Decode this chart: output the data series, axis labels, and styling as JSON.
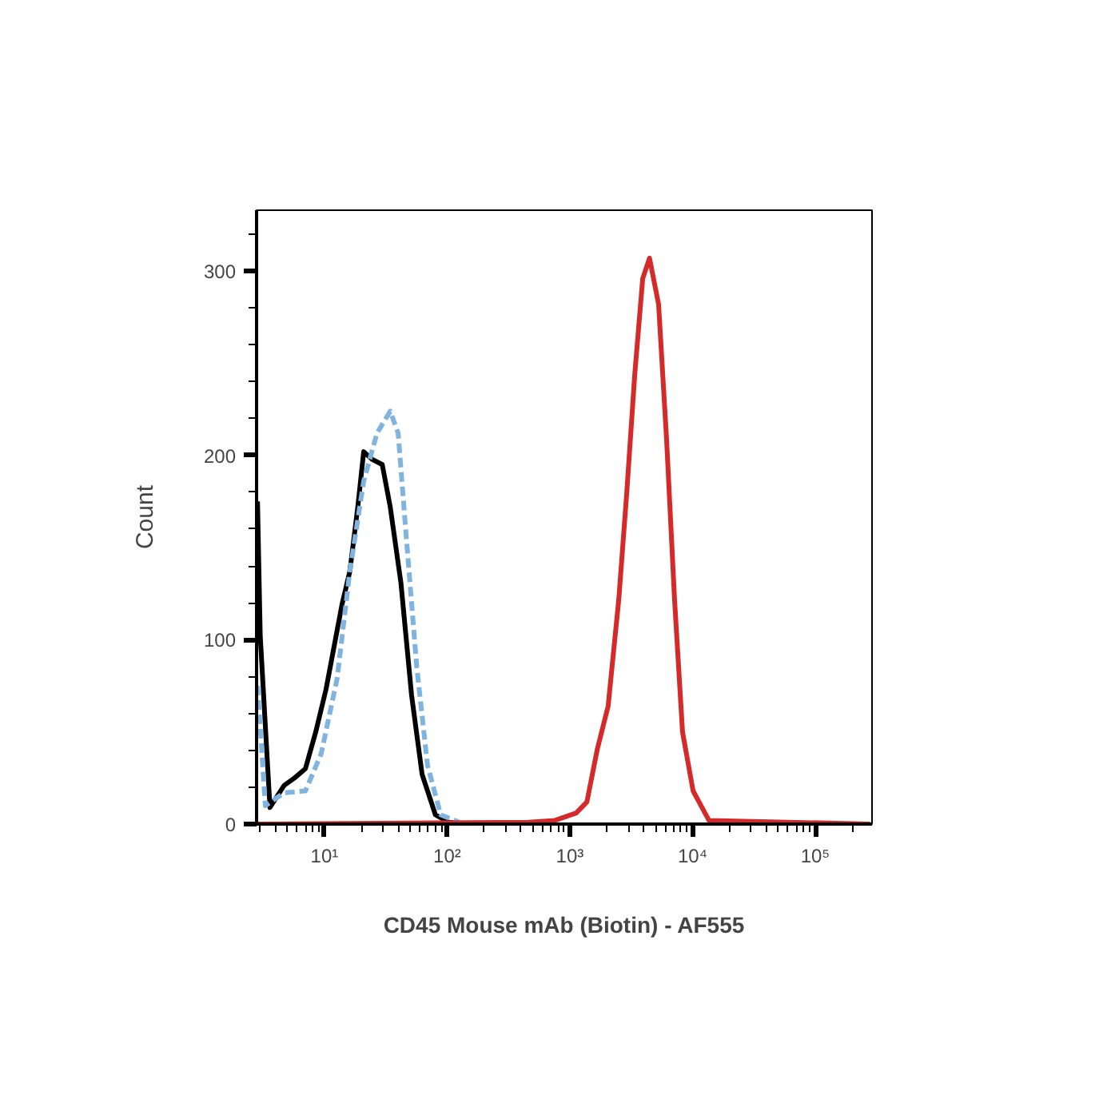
{
  "chart_data": {
    "type": "line",
    "xlabel": "CD45 Mouse mAb (Biotin) - AF555",
    "ylabel": "Count",
    "log": "x",
    "xlim": [
      2.8,
      290000
    ],
    "ylim": [
      0,
      333
    ],
    "xticks": [
      {
        "value": 10,
        "label": "10¹"
      },
      {
        "value": 100,
        "label": "10²"
      },
      {
        "value": 1000,
        "label": "10³"
      },
      {
        "value": 10000,
        "label": "10⁴"
      },
      {
        "value": 100000,
        "label": "10⁵"
      }
    ],
    "yticks": [
      0,
      100,
      200,
      300
    ],
    "marker": "none",
    "series": [
      {
        "color": "#000000",
        "line_style": "solid",
        "x": [
          2.85,
          3.0,
          3.6,
          4.7,
          5.7,
          7.0,
          8.5,
          10.3,
          13.9,
          16.1,
          18.7,
          20.9,
          24.3,
          29.6,
          34.4,
          42,
          51.3,
          62.5,
          80.3,
          103,
          139
        ],
        "values": [
          175,
          102,
          9,
          21,
          25,
          30,
          50,
          73,
          119,
          137,
          172,
          202,
          198,
          195,
          172,
          131,
          70,
          27,
          5,
          1,
          0
        ]
      },
      {
        "color": "#7fb3e0",
        "line_style": "dashed",
        "x": [
          2.85,
          3.3,
          4.7,
          7.0,
          9.4,
          12.7,
          16.1,
          20.9,
          26.8,
          34.4,
          39.9,
          46.3,
          56.6,
          69.2,
          88.7,
          126
        ],
        "values": [
          75,
          10,
          17,
          18,
          38,
          79,
          137,
          186,
          212,
          224,
          212,
          157,
          85,
          32,
          5,
          1
        ]
      },
      {
        "color": "#d42a2a",
        "line_style": "solid",
        "x": [
          2.85,
          459,
          757,
          1127,
          1377,
          1679,
          2051,
          2506,
          2911,
          3381,
          3926,
          4460,
          5285,
          6138,
          7130,
          8283,
          10100,
          13600,
          280000
        ],
        "values": [
          0,
          1,
          2,
          6,
          12,
          41,
          64,
          122,
          180,
          244,
          296,
          307,
          282,
          209,
          122,
          50,
          18,
          2,
          0
        ]
      }
    ]
  }
}
